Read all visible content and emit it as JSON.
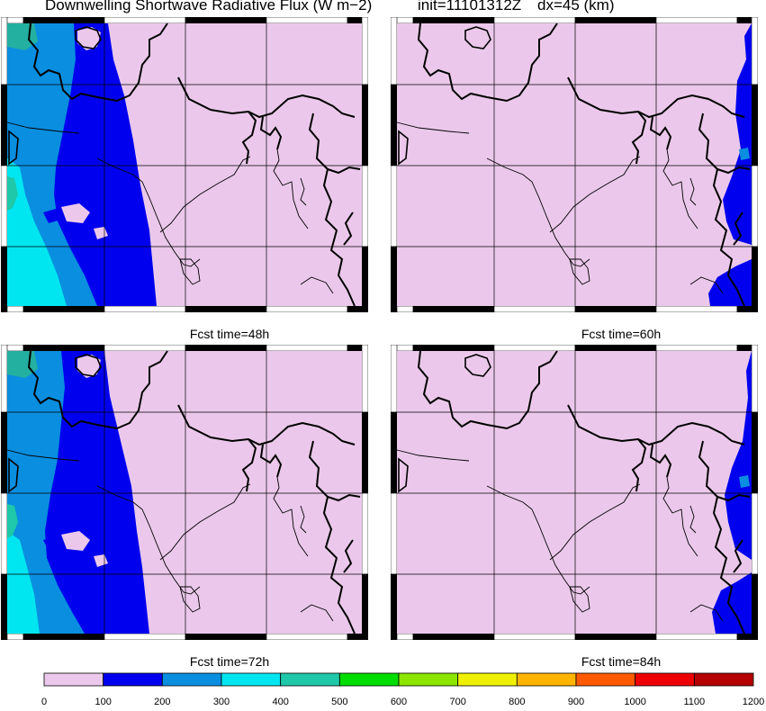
{
  "header": {
    "title": "Downwelling Shortwave Radiative Flux (W m−2)",
    "init": "init=11101312Z",
    "dx": "dx=45 (km)"
  },
  "panels": [
    {
      "id": "p1",
      "caption": "Fcst time=48h",
      "side": "west",
      "var": 0
    },
    {
      "id": "p2",
      "caption": "Fcst time=60h",
      "side": "east",
      "var": 0
    },
    {
      "id": "p3",
      "caption": "Fcst time=72h",
      "side": "west",
      "var": 1
    },
    {
      "id": "p4",
      "caption": "Fcst time=84h",
      "side": "east",
      "var": 1
    }
  ],
  "colorbar": {
    "ticks": [
      "0",
      "100",
      "200",
      "300",
      "400",
      "500",
      "600",
      "700",
      "800",
      "900",
      "1000",
      "1100",
      "1200"
    ],
    "colors": [
      "#ebc8eb",
      "#0000ee",
      "#0a8ee0",
      "#00e6f0",
      "#1ec8a8",
      "#00dd00",
      "#8ce600",
      "#eef000",
      "#ffb400",
      "#ff5a00",
      "#ee0000",
      "#b40000",
      "#b4005a"
    ]
  },
  "colors": {
    "background_field": "#ebc8eb",
    "band_100_200": "#0000ee",
    "band_200_300": "#0a8ee0",
    "band_300_400": "#00e6f0",
    "band_400_500": "#1ec8a8"
  }
}
